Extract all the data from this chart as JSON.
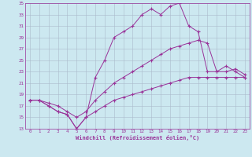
{
  "xlabel": "Windchill (Refroidissement éolien,°C)",
  "bg_color": "#cce8f0",
  "grid_color": "#aabbcc",
  "line_color": "#993399",
  "xlim": [
    -0.5,
    23.5
  ],
  "ylim": [
    13,
    35
  ],
  "yticks": [
    13,
    15,
    17,
    19,
    21,
    23,
    25,
    27,
    29,
    31,
    33,
    35
  ],
  "xticks": [
    0,
    1,
    2,
    3,
    4,
    5,
    6,
    7,
    8,
    9,
    10,
    11,
    12,
    13,
    14,
    15,
    16,
    17,
    18,
    19,
    20,
    21,
    22,
    23
  ],
  "line1_x": [
    0,
    1,
    2,
    3,
    4,
    5,
    6,
    7,
    8,
    9,
    10,
    11,
    12,
    13,
    14,
    15,
    16,
    17,
    18,
    19,
    20,
    21,
    22,
    23
  ],
  "line1_y": [
    18,
    18,
    17,
    16,
    15.5,
    13,
    15,
    22,
    25,
    29,
    30,
    31,
    33,
    34,
    33,
    34.5,
    35,
    31,
    30,
    23,
    23,
    24,
    23,
    22
  ],
  "line2_x": [
    0,
    1,
    2,
    3,
    4,
    5,
    6,
    7,
    8,
    9,
    10,
    11,
    12,
    13,
    14,
    15,
    16,
    17,
    18,
    19,
    20,
    21,
    22,
    23
  ],
  "line2_y": [
    18,
    18,
    17.5,
    17,
    16,
    15,
    16,
    18,
    19.5,
    21,
    22,
    23,
    24,
    25,
    26,
    27,
    27.5,
    28,
    28.5,
    28,
    23,
    23,
    23.5,
    22.5
  ],
  "line3_x": [
    0,
    1,
    2,
    3,
    4,
    5,
    6,
    7,
    8,
    9,
    10,
    11,
    12,
    13,
    14,
    15,
    16,
    17,
    18,
    19,
    20,
    21,
    22,
    23
  ],
  "line3_y": [
    18,
    18,
    17,
    16,
    15.5,
    13,
    15,
    16,
    17,
    18,
    18.5,
    19,
    19.5,
    20,
    20.5,
    21,
    21.5,
    22,
    22,
    22,
    22,
    22,
    22,
    22
  ]
}
